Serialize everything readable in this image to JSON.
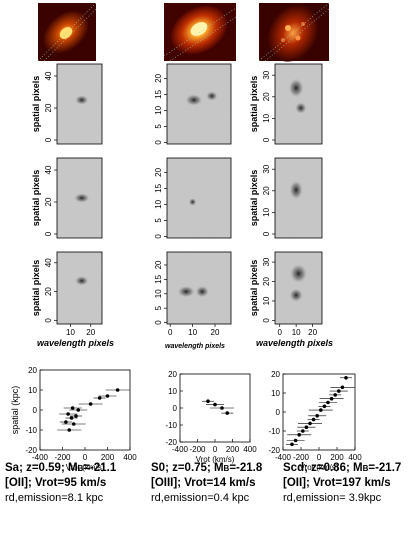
{
  "colors": {
    "galaxy_bg": "#3a0200",
    "galaxy_mid": "#c03200",
    "galaxy_core": "#ffe070",
    "panel_gray": "#c8c8c8",
    "ink": "#000000"
  },
  "spectra": {
    "ylabel": "spatial pixels",
    "xlabel": "wavelength pixels",
    "col1_yticks": [
      "0",
      "20",
      "40"
    ],
    "col2_yticks": [
      "0",
      "5",
      "10",
      "15",
      "20"
    ],
    "col3_yticks": [
      "0",
      "10",
      "20",
      "30"
    ],
    "col1_xticks": [
      "10",
      "20"
    ],
    "col2_xticks": [
      "0",
      "10",
      "20"
    ],
    "col3_xticks": [
      "0",
      "10",
      "20"
    ]
  },
  "rotation_curves": {
    "ylabel": "spatial (kpc)",
    "xlabel": "Vrot  (km/s)",
    "yticks": [
      "20",
      "10",
      "0",
      "-10",
      "-20"
    ],
    "panel1_xticks": [
      "-400",
      "-200",
      "0",
      "200",
      "400"
    ],
    "panel2_xticks": [
      "-400",
      "-200",
      "0",
      "200",
      "400"
    ],
    "panel3_xticks": [
      "-400",
      "-200",
      "0",
      "200",
      "400"
    ]
  },
  "chart_data": [
    {
      "type": "scatter",
      "xlabel": "Vrot  (km/s)",
      "ylabel": "spatial (kpc)",
      "xlim": [
        -400,
        400
      ],
      "ylim": [
        -20,
        20
      ],
      "series": [
        {
          "x": [
            -170,
            -150,
            -140,
            -120,
            -110,
            -100,
            -80,
            -60,
            50,
            130,
            200,
            290
          ],
          "y": [
            -6,
            -2,
            -10,
            -4,
            1,
            -7,
            -3,
            0,
            3,
            6,
            7,
            10
          ]
        }
      ]
    },
    {
      "type": "scatter",
      "xlabel": "Vrot  (km/s)",
      "ylabel": "",
      "xlim": [
        -400,
        400
      ],
      "ylim": [
        -20,
        20
      ],
      "series": [
        {
          "x": [
            -80,
            0,
            80,
            140
          ],
          "y": [
            4,
            2,
            0,
            -3
          ]
        }
      ]
    },
    {
      "type": "scatter",
      "xlabel": "Vrot  (km/s)",
      "ylabel": "",
      "xlim": [
        -400,
        400
      ],
      "ylim": [
        -20,
        20
      ],
      "series": [
        {
          "x": [
            -300,
            -260,
            -220,
            -180,
            -140,
            -100,
            -60,
            -20,
            20,
            60,
            100,
            140,
            180,
            220,
            260,
            300
          ],
          "y": [
            -17,
            -15,
            -12,
            -10,
            -8,
            -6,
            -4,
            -2,
            1,
            3,
            5,
            7,
            9,
            11,
            13,
            18
          ]
        }
      ]
    }
  ],
  "captions": [
    {
      "type": "Sa; z=0.59; M",
      "sub": "B",
      "mag": "=-21.1",
      "line2": "[OII]; Vrot=95 km/s",
      "line3": "rd,emission=8.1 kpc"
    },
    {
      "type": "S0; z=0.75; M",
      "sub": "B",
      "mag": "=-21.8",
      "line2": "[OIII]; Vrot=14 km/s",
      "line3": "rd,emission=0.4 kpc"
    },
    {
      "type": "Scd; z=0.86; M",
      "sub": "B",
      "mag": "=-21.7",
      "line2": "[OII]; Vrot=197 km/s",
      "line3": "rd,emission= 3.9kpc"
    }
  ]
}
